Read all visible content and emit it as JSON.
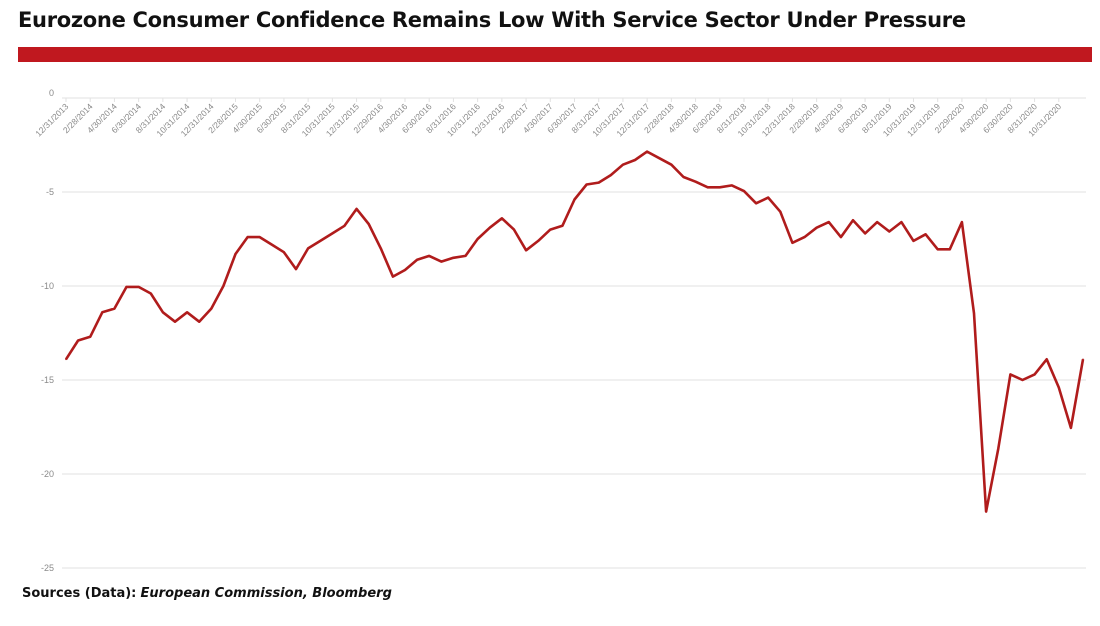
{
  "title": "Eurozone Consumer Confidence Remains Low With Service Sector Under Pressure",
  "colors": {
    "accent_bar": "#c0181f",
    "line": "#b01c1c",
    "grid": "#e2e2e2",
    "tick_text": "#8a8a8a"
  },
  "source": {
    "label": "Sources (Data):",
    "value": "European Commission, Bloomberg"
  },
  "chart_data": {
    "type": "line",
    "title": "",
    "xlabel": "",
    "ylabel": "",
    "ylim": [
      -25,
      0
    ],
    "yticks": [
      0,
      -5,
      -10,
      -15,
      -20,
      -25
    ],
    "grid": true,
    "legend": "none",
    "x": [
      "12/31/2013",
      "1/31/2014",
      "2/28/2014",
      "3/31/2014",
      "4/30/2014",
      "5/31/2014",
      "6/30/2014",
      "7/31/2014",
      "8/31/2014",
      "9/30/2014",
      "10/31/2014",
      "11/30/2014",
      "12/31/2014",
      "1/31/2015",
      "2/28/2015",
      "3/31/2015",
      "4/30/2015",
      "5/31/2015",
      "6/30/2015",
      "7/31/2015",
      "8/31/2015",
      "9/30/2015",
      "10/31/2015",
      "11/30/2015",
      "12/31/2015",
      "1/31/2016",
      "2/29/2016",
      "3/31/2016",
      "4/30/2016",
      "5/31/2016",
      "6/30/2016",
      "7/31/2016",
      "8/31/2016",
      "9/30/2016",
      "10/31/2016",
      "11/30/2016",
      "12/31/2016",
      "1/31/2017",
      "2/28/2017",
      "3/31/2017",
      "4/30/2017",
      "5/31/2017",
      "6/30/2017",
      "7/31/2017",
      "8/31/2017",
      "9/30/2017",
      "10/31/2017",
      "11/30/2017",
      "12/31/2017",
      "1/31/2018",
      "2/28/2018",
      "3/31/2018",
      "4/30/2018",
      "5/31/2018",
      "6/30/2018",
      "7/31/2018",
      "8/31/2018",
      "9/30/2018",
      "10/31/2018",
      "11/30/2018",
      "12/31/2018",
      "1/31/2019",
      "2/28/2019",
      "3/31/2019",
      "4/30/2019",
      "5/31/2019",
      "6/30/2019",
      "7/31/2019",
      "8/31/2019",
      "9/30/2019",
      "10/31/2019",
      "11/30/2019",
      "12/31/2019",
      "1/31/2020",
      "2/29/2020",
      "3/31/2020",
      "4/30/2020",
      "5/31/2020",
      "6/30/2020",
      "7/31/2020",
      "8/31/2020",
      "9/30/2020",
      "10/31/2020",
      "11/30/2020",
      "12/31/2020"
    ],
    "tick_labels": [
      "12/31/2013",
      "2/28/2014",
      "4/30/2014",
      "6/30/2014",
      "8/31/2014",
      "10/31/2014",
      "12/31/2014",
      "2/28/2015",
      "4/30/2015",
      "6/30/2015",
      "8/31/2015",
      "10/31/2015",
      "12/31/2015",
      "2/29/2016",
      "4/30/2016",
      "6/30/2016",
      "8/31/2016",
      "10/31/2016",
      "12/31/2016",
      "2/28/2017",
      "4/30/2017",
      "6/30/2017",
      "8/31/2017",
      "10/31/2017",
      "12/31/2017",
      "2/28/2018",
      "4/30/2018",
      "6/30/2018",
      "8/31/2018",
      "10/31/2018",
      "12/31/2018",
      "2/28/2019",
      "4/30/2019",
      "6/30/2019",
      "8/31/2019",
      "10/31/2019",
      "12/31/2019",
      "2/29/2020",
      "4/30/2020",
      "6/30/2020",
      "8/31/2020",
      "10/31/2020"
    ],
    "series": [
      {
        "values": [
          -13.9,
          -12.9,
          -12.7,
          -11.4,
          -11.2,
          -10.05,
          -10.05,
          -10.4,
          -11.4,
          -11.9,
          -11.4,
          -11.9,
          -11.2,
          -10.0,
          -8.3,
          -7.4,
          -7.4,
          -7.8,
          -8.2,
          -9.1,
          -8.0,
          -7.6,
          -7.2,
          -6.8,
          -5.9,
          -6.7,
          -8.0,
          -9.5,
          -9.15,
          -8.6,
          -8.4,
          -8.7,
          -8.5,
          -8.4,
          -7.5,
          -6.9,
          -6.4,
          -7.0,
          -8.1,
          -7.6,
          -7.0,
          -6.8,
          -5.4,
          -4.6,
          -4.5,
          -4.1,
          -3.55,
          -3.3,
          -2.85,
          -3.2,
          -3.55,
          -4.2,
          -4.45,
          -4.75,
          -4.75,
          -4.65,
          -4.95,
          -5.6,
          -5.3,
          -6.05,
          -7.7,
          -7.4,
          -6.9,
          -6.6,
          -7.4,
          -6.5,
          -7.2,
          -6.6,
          -7.1,
          -6.6,
          -7.6,
          -7.25,
          -8.05,
          -8.05,
          -6.6,
          -11.45,
          -22.0,
          -18.65,
          -14.7,
          -15.0,
          -14.7,
          -13.9,
          -15.4,
          -17.55,
          -13.9
        ]
      }
    ]
  }
}
